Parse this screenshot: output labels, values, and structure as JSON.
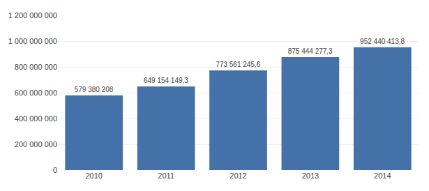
{
  "chart_data": {
    "type": "bar",
    "categories": [
      "2010",
      "2011",
      "2012",
      "2013",
      "2014"
    ],
    "values": [
      579380208,
      649154149.3,
      773561245.6,
      875444277.3,
      952440413.8
    ],
    "value_labels": [
      "579 380 208",
      "649 154 149,3",
      "773 561 245,6",
      "875 444 277,3",
      "952 440 413,8"
    ],
    "data_labels": true,
    "color": "#4472a8",
    "ylim": [
      0,
      1200000000
    ],
    "yticks": [
      0,
      {
        "value": 200000000,
        "label": "200 000 000"
      },
      {
        "value": 400000000,
        "label": "400 000 000"
      },
      {
        "value": 600000000,
        "label": "600 000 000"
      },
      {
        "value": 800000000,
        "label": "800 000 000"
      },
      {
        "value": 1000000000,
        "label": "1 000 000 000"
      },
      {
        "value": 1200000000,
        "label": "1 200 000 000"
      }
    ],
    "grid": true
  }
}
